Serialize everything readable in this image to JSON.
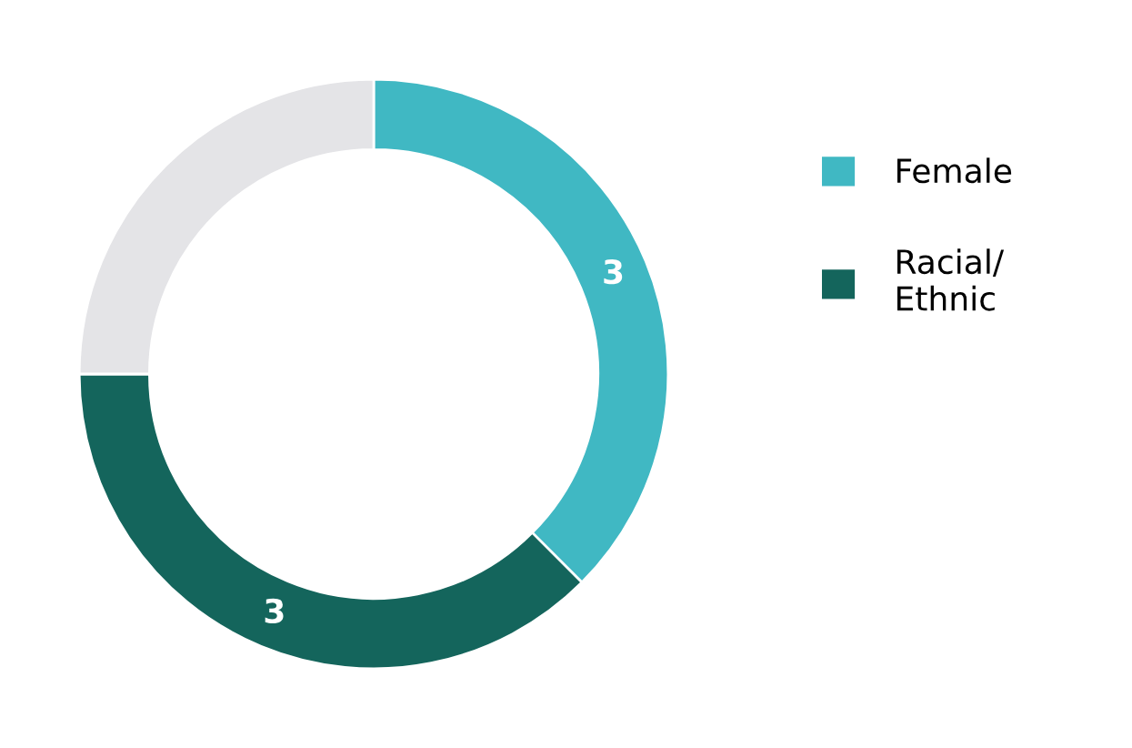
{
  "chart_data": {
    "type": "donut",
    "categories": [
      "Female",
      "Racial/\nEthnic",
      null
    ],
    "values": [
      3,
      3,
      2
    ],
    "colors": [
      "#40b8c3",
      "#14655c",
      "#e4e4e7"
    ],
    "value_labels": [
      "3",
      "3",
      null
    ],
    "legend": "right"
  }
}
